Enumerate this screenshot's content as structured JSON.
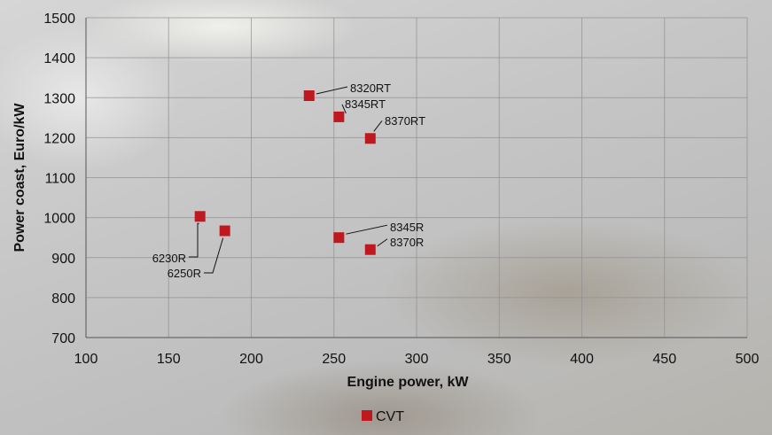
{
  "chart_data": {
    "type": "scatter",
    "title": "",
    "xlabel": "Engine power, kW",
    "ylabel": "Power coast, Euro/kW",
    "xlim": [
      100,
      500
    ],
    "ylim": [
      700,
      1500
    ],
    "x_ticks": [
      100,
      150,
      200,
      250,
      300,
      350,
      400,
      450,
      500
    ],
    "y_ticks": [
      700,
      800,
      900,
      1000,
      1100,
      1200,
      1300,
      1400,
      1500
    ],
    "grid": true,
    "legend_position": "bottom-center",
    "series": [
      {
        "name": "CVT",
        "color": "#c0181f",
        "marker": "square",
        "points": [
          {
            "label": "8320RT",
            "x": 235,
            "y": 1305
          },
          {
            "label": "8345RT",
            "x": 253,
            "y": 1252
          },
          {
            "label": "8370RT",
            "x": 272,
            "y": 1198
          },
          {
            "label": "6230R",
            "x": 169,
            "y": 1003
          },
          {
            "label": "6250R",
            "x": 184,
            "y": 967
          },
          {
            "label": "8345R",
            "x": 253,
            "y": 950
          },
          {
            "label": "8370R",
            "x": 272,
            "y": 920
          }
        ]
      }
    ]
  }
}
